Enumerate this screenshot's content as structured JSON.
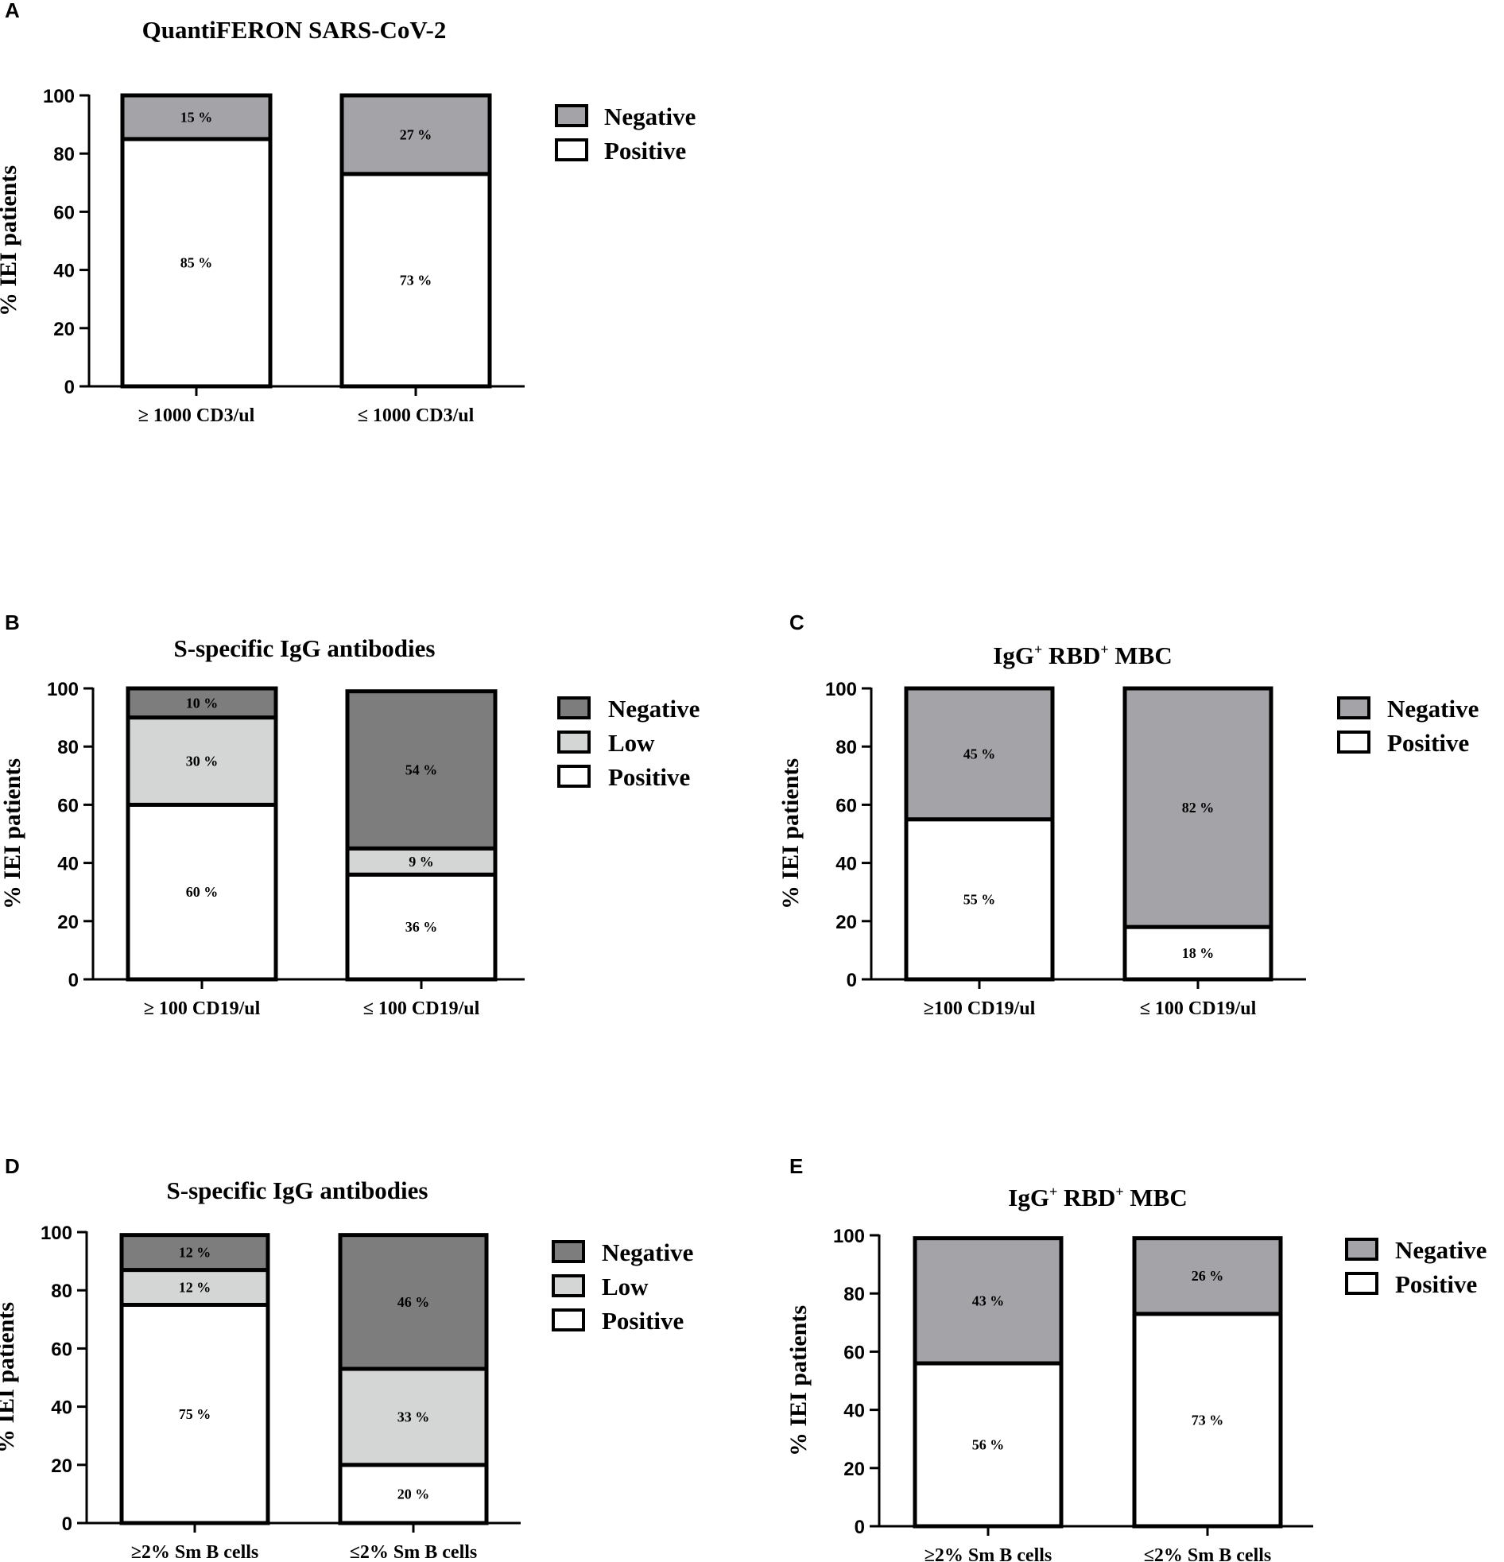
{
  "chart_data": [
    {
      "panel": "A",
      "type": "bar",
      "stacked": true,
      "title": "QuantiFERON SARS-CoV-2",
      "ylabel": "% IEI patients",
      "xlabel": "",
      "ylim": [
        0,
        100
      ],
      "yticks": [
        "0",
        "20",
        "40",
        "60",
        "80",
        "100"
      ],
      "categories": [
        "≥ 1000 CD3/ul",
        "≤ 1000 CD3/ul"
      ],
      "series": [
        {
          "name": "Positive",
          "color": "#ffffff",
          "values": [
            85,
            73
          ],
          "labels": [
            "85 %",
            "73 %"
          ]
        },
        {
          "name": "Negative",
          "color": "#a3a3a8",
          "values": [
            15,
            27
          ],
          "labels": [
            "15  %",
            "27 %"
          ]
        }
      ],
      "legend": [
        "Negative",
        "Positive"
      ],
      "legend_position": "right"
    },
    {
      "panel": "B",
      "type": "bar",
      "stacked": true,
      "title": "S-specific IgG antibodies",
      "ylabel": "% IEI patients",
      "xlabel": "",
      "ylim": [
        0,
        100
      ],
      "yticks": [
        "0",
        "20",
        "40",
        "60",
        "80",
        "100"
      ],
      "categories": [
        "≥ 100 CD19/ul",
        "≤ 100 CD19/ul"
      ],
      "series": [
        {
          "name": "Positive",
          "color": "#ffffff",
          "values": [
            60,
            36
          ],
          "labels": [
            "60 %",
            "36 %"
          ]
        },
        {
          "name": "Low",
          "color": "#d4d6d6",
          "values": [
            30,
            9
          ],
          "labels": [
            "30  %",
            "9 %"
          ]
        },
        {
          "name": "Negative",
          "color": "#7d7d7d",
          "values": [
            10,
            54
          ],
          "labels": [
            "10  %",
            "54 %"
          ]
        }
      ],
      "legend": [
        "Negative",
        "Low",
        "Positive"
      ],
      "legend_position": "right"
    },
    {
      "panel": "C",
      "type": "bar",
      "stacked": true,
      "title_main": "IgG",
      "title_sup1": "+",
      "title_mid": " RBD",
      "title_sup2": "+",
      "title_end": " MBC",
      "ylabel": "% IEI patients",
      "xlabel": "",
      "ylim": [
        0,
        100
      ],
      "yticks": [
        "0",
        "20",
        "40",
        "60",
        "80",
        "100"
      ],
      "categories": [
        "≥100 CD19/ul",
        "≤ 100 CD19/ul"
      ],
      "series": [
        {
          "name": "Positive",
          "color": "#ffffff",
          "values": [
            55,
            18
          ],
          "labels": [
            "55 %",
            "18 %"
          ]
        },
        {
          "name": "Negative",
          "color": "#a3a3a8",
          "values": [
            45,
            82
          ],
          "labels": [
            "45 %",
            "82 %"
          ]
        }
      ],
      "legend": [
        "Negative",
        "Positive"
      ],
      "legend_position": "right"
    },
    {
      "panel": "D",
      "type": "bar",
      "stacked": true,
      "title": "S-specific IgG antibodies",
      "ylabel": "% IEI patients",
      "xlabel": "",
      "ylim": [
        0,
        100
      ],
      "yticks": [
        "0",
        "20",
        "40",
        "60",
        "80",
        "100"
      ],
      "categories": [
        "≥2% Sm B cells",
        "≤2% Sm B cells"
      ],
      "series": [
        {
          "name": "Positive",
          "color": "#ffffff",
          "values": [
            75,
            20
          ],
          "labels": [
            "75 %",
            "20 %"
          ]
        },
        {
          "name": "Low",
          "color": "#d4d6d6",
          "values": [
            12,
            33
          ],
          "labels": [
            "12 %",
            "33 %"
          ]
        },
        {
          "name": "Negative",
          "color": "#7d7d7d",
          "values": [
            12,
            46
          ],
          "labels": [
            "12 %",
            "46 %"
          ]
        }
      ],
      "legend": [
        "Negative",
        "Low",
        "Positive"
      ],
      "legend_position": "right"
    },
    {
      "panel": "E",
      "type": "bar",
      "stacked": true,
      "title_main": "IgG",
      "title_sup1": "+",
      "title_mid": " RBD",
      "title_sup2": "+",
      "title_end": " MBC",
      "ylabel": "% IEI patients",
      "xlabel": "",
      "ylim": [
        0,
        100
      ],
      "yticks": [
        "0",
        "20",
        "40",
        "60",
        "80",
        "100"
      ],
      "categories": [
        "≥2% Sm B cells",
        "≤2% Sm B cells"
      ],
      "series": [
        {
          "name": "Positive",
          "color": "#ffffff",
          "values": [
            56,
            73
          ],
          "labels": [
            "56 %",
            "73 %"
          ]
        },
        {
          "name": "Negative",
          "color": "#a3a3a8",
          "values": [
            43,
            26
          ],
          "labels": [
            "43  %",
            "26 %"
          ]
        }
      ],
      "legend": [
        "Negative",
        "Positive"
      ],
      "legend_position": "right"
    }
  ]
}
